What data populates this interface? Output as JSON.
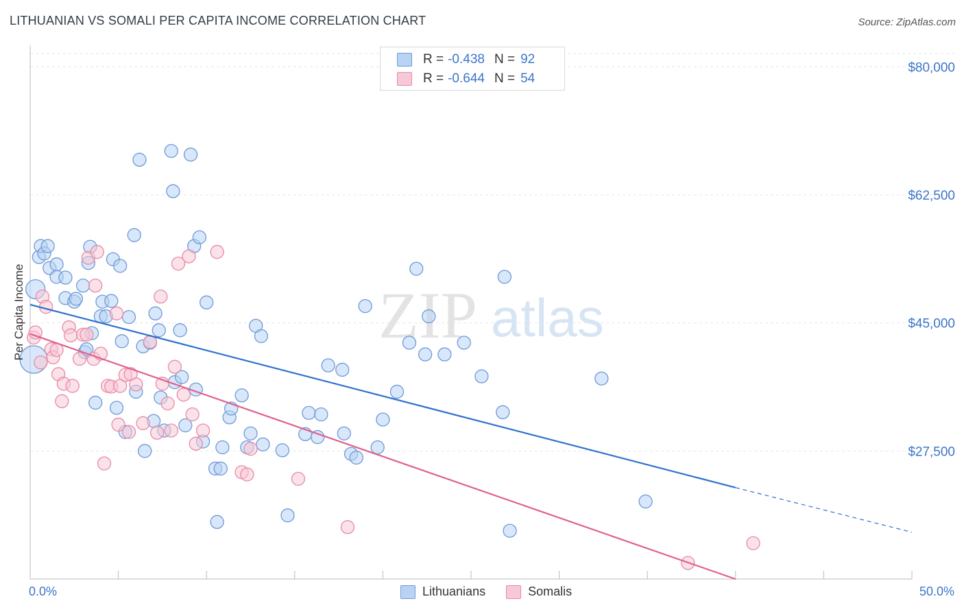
{
  "title": "LITHUANIAN VS SOMALI PER CAPITA INCOME CORRELATION CHART",
  "source": "Source: ZipAtlas.com",
  "watermark": {
    "zip": "ZIP",
    "atlas": "atlas"
  },
  "legend_top": {
    "rows": [
      {
        "r_label": "R =",
        "r_value": "-0.438",
        "n_label": "N =",
        "n_value": "92"
      },
      {
        "r_label": "R =",
        "r_value": "-0.644",
        "n_label": "N =",
        "n_value": "54"
      }
    ]
  },
  "colors": {
    "blue_fill": "#b8d3f4",
    "blue_stroke": "#6d9ad8",
    "blue_line": "#2f72cc",
    "pink_fill": "#f8c8d6",
    "pink_stroke": "#e88aa8",
    "pink_line": "#e0608d",
    "tick_text": "#3b76c9",
    "grid": "#e6e6e6"
  },
  "chart_data": {
    "type": "scatter",
    "title": "LITHUANIAN VS SOMALI PER CAPITA INCOME CORRELATION CHART",
    "xlabel": "",
    "ylabel": "Per Capita Income",
    "xlim": [
      0,
      50
    ],
    "ylim": [
      10000,
      82000
    ],
    "x_tick_labels": [
      "0.0%",
      "50.0%"
    ],
    "y_ticks": [
      27500,
      45000,
      62500,
      80000
    ],
    "y_tick_labels": [
      "$27,500",
      "$45,000",
      "$62,500",
      "$80,000"
    ],
    "grid": true,
    "legend_position": "bottom",
    "series": [
      {
        "name": "Lithuanians",
        "color": "#6d9ad8",
        "trend": {
          "x0": 0,
          "y0": 47500,
          "x1": 40,
          "y1": 22500,
          "dash_to_x": 50,
          "dash_to_y": 16400
        },
        "points": [
          [
            0.3,
            49600,
            2
          ],
          [
            0.2,
            40000,
            3
          ],
          [
            0.5,
            54000,
            1
          ],
          [
            0.6,
            55500,
            1
          ],
          [
            0.8,
            54500,
            1
          ],
          [
            1.0,
            55500,
            1
          ],
          [
            1.1,
            52500,
            1
          ],
          [
            1.5,
            53000,
            1
          ],
          [
            1.5,
            51300,
            1
          ],
          [
            2.0,
            51200,
            1
          ],
          [
            2.0,
            48400,
            1
          ],
          [
            2.5,
            47900,
            1
          ],
          [
            2.6,
            48300,
            1
          ],
          [
            3.0,
            50100,
            1
          ],
          [
            3.1,
            41000,
            1
          ],
          [
            3.2,
            41400,
            1
          ],
          [
            3.3,
            53200,
            1
          ],
          [
            3.4,
            55400,
            1
          ],
          [
            3.5,
            43600,
            1
          ],
          [
            3.7,
            34100,
            1
          ],
          [
            4.0,
            45900,
            1
          ],
          [
            4.1,
            47900,
            1
          ],
          [
            4.3,
            45900,
            1
          ],
          [
            4.6,
            48000,
            1
          ],
          [
            4.7,
            53700,
            1
          ],
          [
            4.9,
            33400,
            1
          ],
          [
            5.1,
            52800,
            1
          ],
          [
            5.2,
            42500,
            1
          ],
          [
            5.4,
            30100,
            1
          ],
          [
            5.6,
            45800,
            1
          ],
          [
            5.9,
            57000,
            1
          ],
          [
            6.0,
            35600,
            1
          ],
          [
            6.2,
            67300,
            1
          ],
          [
            6.4,
            41800,
            1
          ],
          [
            6.5,
            27500,
            1
          ],
          [
            6.8,
            42300,
            1
          ],
          [
            7.0,
            31600,
            1
          ],
          [
            7.1,
            46300,
            1
          ],
          [
            7.3,
            44000,
            1
          ],
          [
            7.4,
            34800,
            1
          ],
          [
            7.6,
            30300,
            1
          ],
          [
            8.0,
            68500,
            1
          ],
          [
            8.1,
            63000,
            1
          ],
          [
            8.2,
            36900,
            1
          ],
          [
            8.5,
            44000,
            1
          ],
          [
            8.6,
            37600,
            1
          ],
          [
            8.8,
            31000,
            1
          ],
          [
            9.1,
            68000,
            1
          ],
          [
            9.3,
            55500,
            1
          ],
          [
            9.4,
            35900,
            1
          ],
          [
            9.6,
            56700,
            1
          ],
          [
            9.8,
            28800,
            1
          ],
          [
            10.0,
            47800,
            1
          ],
          [
            10.5,
            25100,
            1
          ],
          [
            10.6,
            17800,
            1
          ],
          [
            10.8,
            25100,
            1
          ],
          [
            10.9,
            28000,
            1
          ],
          [
            11.3,
            32100,
            1
          ],
          [
            11.4,
            33300,
            1
          ],
          [
            12.0,
            35100,
            1
          ],
          [
            12.3,
            28000,
            1
          ],
          [
            12.5,
            29900,
            1
          ],
          [
            12.8,
            44600,
            1
          ],
          [
            13.1,
            43200,
            1
          ],
          [
            13.2,
            28400,
            1
          ],
          [
            14.3,
            27600,
            1
          ],
          [
            14.6,
            18700,
            1
          ],
          [
            15.6,
            29800,
            1
          ],
          [
            15.8,
            32700,
            1
          ],
          [
            16.3,
            29400,
            1
          ],
          [
            16.5,
            32500,
            1
          ],
          [
            16.9,
            39200,
            1
          ],
          [
            17.7,
            38600,
            1
          ],
          [
            17.8,
            29900,
            1
          ],
          [
            18.2,
            27100,
            1
          ],
          [
            18.5,
            26600,
            1
          ],
          [
            19.0,
            47300,
            1
          ],
          [
            19.7,
            28000,
            1
          ],
          [
            20.0,
            31800,
            1
          ],
          [
            20.8,
            35600,
            1
          ],
          [
            21.5,
            42300,
            1
          ],
          [
            21.9,
            52400,
            1
          ],
          [
            22.4,
            40700,
            1
          ],
          [
            22.6,
            45900,
            1
          ],
          [
            23.5,
            40700,
            1
          ],
          [
            24.6,
            42300,
            1
          ],
          [
            25.6,
            37700,
            1
          ],
          [
            26.8,
            32800,
            1
          ],
          [
            26.9,
            51300,
            1
          ],
          [
            27.2,
            16600,
            1
          ],
          [
            32.4,
            37400,
            1
          ],
          [
            34.9,
            20600,
            1
          ]
        ]
      },
      {
        "name": "Somalis",
        "color": "#e88aa8",
        "trend": {
          "x0": 0,
          "y0": 43500,
          "x1": 40,
          "y1": 10000
        },
        "points": [
          [
            0.2,
            43000,
            1
          ],
          [
            0.3,
            43700,
            1
          ],
          [
            0.6,
            39600,
            1
          ],
          [
            0.7,
            48600,
            1
          ],
          [
            0.9,
            47200,
            1
          ],
          [
            1.2,
            41400,
            1
          ],
          [
            1.3,
            40300,
            1
          ],
          [
            1.5,
            41300,
            1
          ],
          [
            1.6,
            38000,
            1
          ],
          [
            1.8,
            34300,
            1
          ],
          [
            1.9,
            36700,
            1
          ],
          [
            2.2,
            44400,
            1
          ],
          [
            2.3,
            43300,
            1
          ],
          [
            2.4,
            36400,
            1
          ],
          [
            2.8,
            40100,
            1
          ],
          [
            3.0,
            43400,
            1
          ],
          [
            3.2,
            43400,
            1
          ],
          [
            3.3,
            53900,
            1
          ],
          [
            3.6,
            40100,
            1
          ],
          [
            3.7,
            50100,
            1
          ],
          [
            3.8,
            54700,
            1
          ],
          [
            4.0,
            40800,
            1
          ],
          [
            4.2,
            25800,
            1
          ],
          [
            4.4,
            36400,
            1
          ],
          [
            4.6,
            36300,
            1
          ],
          [
            4.9,
            46300,
            1
          ],
          [
            5.0,
            31100,
            1
          ],
          [
            5.1,
            36400,
            1
          ],
          [
            5.4,
            37900,
            1
          ],
          [
            5.6,
            30100,
            1
          ],
          [
            5.7,
            38000,
            1
          ],
          [
            6.0,
            36600,
            1
          ],
          [
            6.4,
            31300,
            1
          ],
          [
            6.8,
            42400,
            1
          ],
          [
            7.2,
            30000,
            1
          ],
          [
            7.4,
            48600,
            1
          ],
          [
            7.5,
            36700,
            1
          ],
          [
            7.8,
            34000,
            1
          ],
          [
            8.0,
            30300,
            1
          ],
          [
            8.2,
            39000,
            1
          ],
          [
            8.4,
            53100,
            1
          ],
          [
            8.7,
            35200,
            1
          ],
          [
            9.0,
            54100,
            1
          ],
          [
            9.2,
            32500,
            1
          ],
          [
            9.4,
            28500,
            1
          ],
          [
            9.8,
            30300,
            1
          ],
          [
            10.6,
            54700,
            1
          ],
          [
            12.0,
            24600,
            1
          ],
          [
            12.3,
            24300,
            1
          ],
          [
            12.5,
            27800,
            1
          ],
          [
            15.2,
            23700,
            1
          ],
          [
            18.0,
            17100,
            1
          ],
          [
            37.3,
            12200,
            1
          ],
          [
            41.0,
            14900,
            1
          ]
        ]
      }
    ]
  },
  "legend_bottom": [
    {
      "label": "Lithuanians"
    },
    {
      "label": "Somalis"
    }
  ]
}
